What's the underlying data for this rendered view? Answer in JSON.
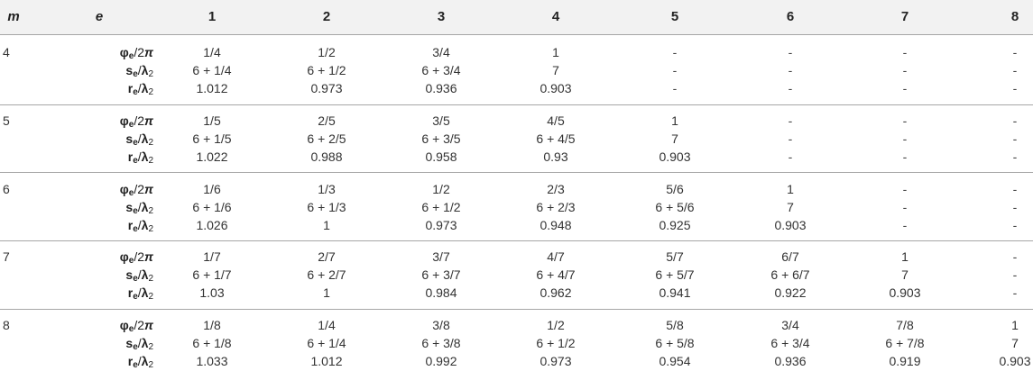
{
  "table": {
    "headers": {
      "m": "m",
      "e": "e",
      "cols": [
        "1",
        "2",
        "3",
        "4",
        "5",
        "6",
        "7",
        "8"
      ]
    },
    "row_labels": {
      "phi": {
        "main": "φ",
        "sub": "e",
        "rest": "/2",
        "tail": "π"
      },
      "s": {
        "main": "s",
        "sub": "e",
        "rest": "/",
        "tail": "λ",
        "tail_sub": "2"
      },
      "r": {
        "main": "r",
        "sub": "e",
        "rest": "/",
        "tail": "λ",
        "tail_sub": "2"
      }
    },
    "groups": [
      {
        "m": "4",
        "phi": [
          "1/4",
          "1/2",
          "3/4",
          "1",
          "-",
          "-",
          "-",
          "-"
        ],
        "s": [
          "6 + 1/4",
          "6 + 1/2",
          "6 + 3/4",
          "7",
          "-",
          "-",
          "-",
          "-"
        ],
        "r": [
          "1.012",
          "0.973",
          "0.936",
          "0.903",
          "-",
          "-",
          "-",
          "-"
        ]
      },
      {
        "m": "5",
        "phi": [
          "1/5",
          "2/5",
          "3/5",
          "4/5",
          "1",
          "-",
          "-",
          "-"
        ],
        "s": [
          "6 + 1/5",
          "6 + 2/5",
          "6 + 3/5",
          "6 + 4/5",
          "7",
          "-",
          "-",
          "-"
        ],
        "r": [
          "1.022",
          "0.988",
          "0.958",
          "0.93",
          "0.903",
          "-",
          "-",
          "-"
        ]
      },
      {
        "m": "6",
        "phi": [
          "1/6",
          "1/3",
          "1/2",
          "2/3",
          "5/6",
          "1",
          "-",
          "-"
        ],
        "s": [
          "6 + 1/6",
          "6 + 1/3",
          "6 + 1/2",
          "6 + 2/3",
          "6 + 5/6",
          "7",
          "-",
          "-"
        ],
        "r": [
          "1.026",
          "1",
          "0.973",
          "0.948",
          "0.925",
          "0.903",
          "-",
          "-"
        ]
      },
      {
        "m": "7",
        "phi": [
          "1/7",
          "2/7",
          "3/7",
          "4/7",
          "5/7",
          "6/7",
          "1",
          "-"
        ],
        "s": [
          "6 + 1/7",
          "6 + 2/7",
          "6 + 3/7",
          "6 + 4/7",
          "6 + 5/7",
          "6 + 6/7",
          "7",
          "-"
        ],
        "r": [
          "1.03",
          "1",
          "0.984",
          "0.962",
          "0.941",
          "0.922",
          "0.903",
          "-"
        ]
      },
      {
        "m": "8",
        "phi": [
          "1/8",
          "1/4",
          "3/8",
          "1/2",
          "5/8",
          "3/4",
          "7/8",
          "1"
        ],
        "s": [
          "6 + 1/8",
          "6 + 1/4",
          "6 + 3/8",
          "6 + 1/2",
          "6 + 5/8",
          "6 + 3/4",
          "6 + 7/8",
          "7"
        ],
        "r": [
          "1.033",
          "1.012",
          "0.992",
          "0.973",
          "0.954",
          "0.936",
          "0.919",
          "0.903"
        ]
      }
    ]
  }
}
